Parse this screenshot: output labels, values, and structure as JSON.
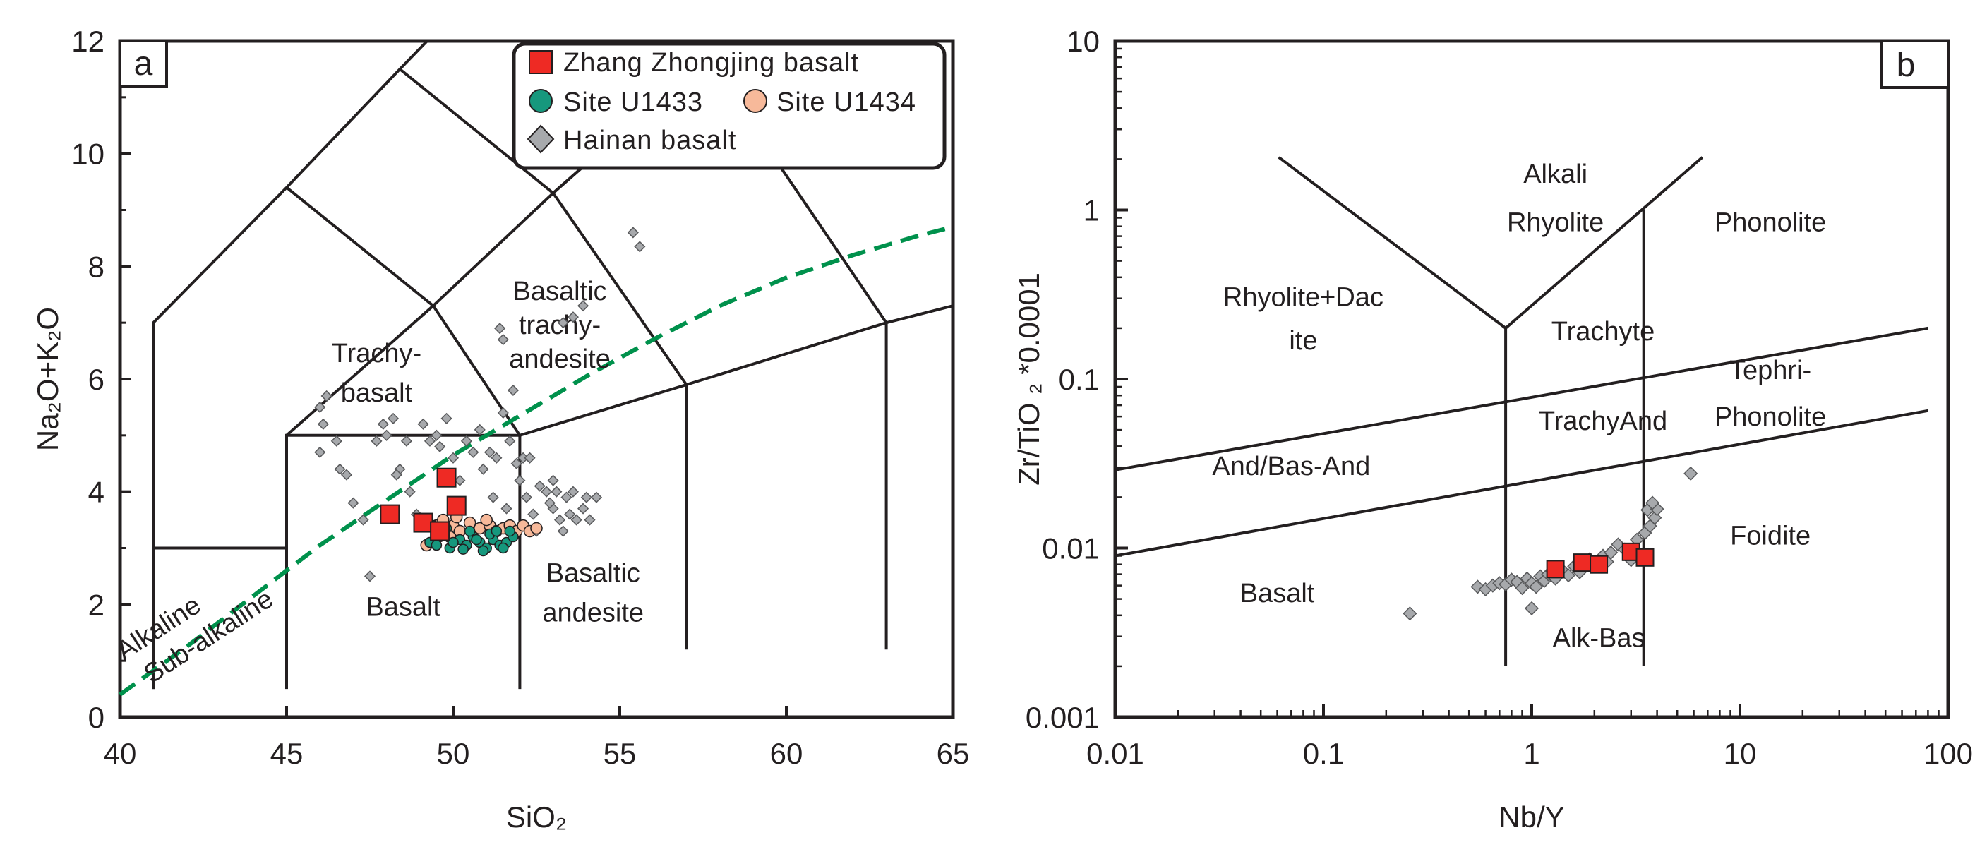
{
  "colors": {
    "ink": "#231f20",
    "zhang": "#ee2a24",
    "u1433": "#16987d",
    "u1434": "#f7b99a",
    "hainan": "#a7a9ac",
    "divider": "#00914c"
  },
  "chart_data": [
    {
      "type": "scatter",
      "panel": "a",
      "title": "",
      "xlabel": "SiO₂",
      "ylabel": "Na₂O+K₂O",
      "xlim": [
        40,
        65
      ],
      "ylim": [
        0,
        12
      ],
      "xticks": [
        "40",
        "45",
        "50",
        "55",
        "60",
        "65"
      ],
      "yticks": [
        "0",
        "2",
        "4",
        "6",
        "8",
        "10",
        "12"
      ],
      "legend": {
        "placement": "top-right",
        "entries": [
          "Zhang Zhongjing basalt",
          "Site U1433",
          "Site U1434",
          "Hainan basalt"
        ]
      },
      "fields": [
        {
          "label": "Basalt",
          "x": 48.5,
          "y": 1.8
        },
        {
          "label": "Basaltic",
          "x": 54.2,
          "y": 2.4
        },
        {
          "label": "andesite",
          "x": 54.2,
          "y": 1.7
        },
        {
          "label": "Trachy-",
          "x": 47.7,
          "y": 6.3
        },
        {
          "label": "basalt",
          "x": 47.7,
          "y": 5.6
        },
        {
          "label": "Basaltic",
          "x": 53.2,
          "y": 7.4
        },
        {
          "label": "trachy-",
          "x": 53.2,
          "y": 6.8
        },
        {
          "label": "andesite",
          "x": 53.2,
          "y": 6.2
        }
      ],
      "divider_labels": [
        "Alkaline",
        "Sub-alkaline"
      ],
      "series": [
        {
          "name": "Zhang Zhongjing basalt",
          "points": [
            [
              48.1,
              3.6
            ],
            [
              49.1,
              3.45
            ],
            [
              49.6,
              3.3
            ],
            [
              49.8,
              4.25
            ],
            [
              50.1,
              3.75
            ]
          ]
        },
        {
          "name": "Site U1433",
          "points": [
            [
              49.3,
              3.1
            ],
            [
              49.6,
              3.2
            ],
            [
              49.9,
              3.0
            ],
            [
              50.2,
              3.15
            ],
            [
              50.4,
              3.05
            ],
            [
              50.6,
              3.2
            ],
            [
              50.8,
              3.1
            ],
            [
              51.0,
              3.0
            ],
            [
              51.2,
              3.15
            ],
            [
              51.4,
              3.05
            ],
            [
              51.6,
              3.1
            ],
            [
              51.8,
              3.2
            ],
            [
              49.8,
              3.35
            ],
            [
              50.5,
              3.3
            ],
            [
              51.1,
              3.25
            ],
            [
              50.0,
              3.1
            ],
            [
              50.9,
              2.95
            ],
            [
              51.5,
              3.0
            ],
            [
              49.5,
              3.05
            ],
            [
              50.3,
              2.98
            ],
            [
              51.7,
              3.3
            ],
            [
              49.4,
              3.4
            ],
            [
              50.7,
              3.15
            ],
            [
              51.3,
              3.3
            ]
          ]
        },
        {
          "name": "Site U1434",
          "points": [
            [
              49.2,
              3.05
            ],
            [
              49.5,
              3.4
            ],
            [
              49.7,
              3.5
            ],
            [
              50.0,
              3.4
            ],
            [
              50.2,
              3.3
            ],
            [
              50.5,
              3.45
            ],
            [
              50.8,
              3.35
            ],
            [
              51.1,
              3.4
            ],
            [
              51.3,
              3.3
            ],
            [
              51.5,
              3.35
            ],
            [
              51.7,
              3.4
            ],
            [
              51.9,
              3.3
            ],
            [
              52.1,
              3.4
            ],
            [
              52.3,
              3.3
            ],
            [
              52.5,
              3.35
            ],
            [
              50.1,
              3.55
            ],
            [
              49.0,
              3.5
            ],
            [
              51.0,
              3.5
            ],
            [
              49.9,
              3.2
            ]
          ]
        },
        {
          "name": "Hainan basalt",
          "points": [
            [
              46.0,
              5.5
            ],
            [
              46.2,
              5.7
            ],
            [
              46.1,
              5.2
            ],
            [
              46.5,
              4.9
            ],
            [
              46.0,
              4.7
            ],
            [
              46.8,
              4.3
            ],
            [
              46.6,
              4.4
            ],
            [
              47.0,
              3.8
            ],
            [
              47.3,
              3.5
            ],
            [
              47.5,
              2.5
            ],
            [
              47.7,
              4.9
            ],
            [
              47.9,
              5.2
            ],
            [
              48.0,
              5.0
            ],
            [
              48.2,
              5.3
            ],
            [
              48.4,
              4.4
            ],
            [
              48.6,
              4.9
            ],
            [
              48.3,
              4.3
            ],
            [
              48.7,
              4.0
            ],
            [
              48.9,
              3.6
            ],
            [
              49.1,
              5.2
            ],
            [
              49.3,
              4.9
            ],
            [
              49.5,
              5.0
            ],
            [
              49.6,
              4.8
            ],
            [
              49.8,
              5.3
            ],
            [
              50.0,
              4.6
            ],
            [
              50.2,
              4.2
            ],
            [
              50.4,
              4.9
            ],
            [
              50.6,
              4.7
            ],
            [
              50.8,
              5.1
            ],
            [
              50.9,
              4.4
            ],
            [
              51.1,
              4.7
            ],
            [
              51.3,
              4.6
            ],
            [
              51.5,
              5.4
            ],
            [
              51.7,
              4.9
            ],
            [
              51.9,
              4.5
            ],
            [
              52.0,
              4.2
            ],
            [
              52.2,
              3.9
            ],
            [
              52.4,
              3.6
            ],
            [
              52.6,
              4.1
            ],
            [
              52.8,
              4.0
            ],
            [
              53.0,
              3.7
            ],
            [
              53.2,
              3.5
            ],
            [
              53.4,
              3.9
            ],
            [
              53.5,
              3.6
            ],
            [
              53.7,
              3.5
            ],
            [
              53.9,
              3.7
            ],
            [
              54.1,
              3.5
            ],
            [
              54.3,
              3.9
            ],
            [
              53.1,
              4.0
            ],
            [
              52.9,
              3.8
            ],
            [
              53.6,
              4.0
            ],
            [
              52.1,
              4.6
            ],
            [
              51.2,
              3.9
            ],
            [
              51.6,
              3.7
            ],
            [
              52.5,
              3.3
            ],
            [
              53.3,
              3.3
            ],
            [
              51.4,
              6.9
            ],
            [
              51.5,
              6.7
            ],
            [
              53.3,
              7.0
            ],
            [
              53.6,
              7.1
            ],
            [
              53.9,
              7.3
            ],
            [
              55.4,
              8.6
            ],
            [
              55.6,
              8.35
            ],
            [
              51.8,
              5.8
            ],
            [
              52.3,
              4.6
            ],
            [
              53.0,
              4.2
            ],
            [
              54.0,
              3.9
            ]
          ]
        }
      ]
    },
    {
      "type": "scatter",
      "panel": "b",
      "title": "",
      "xlabel": "Nb/Y",
      "ylabel": "Zr/TiO ₂ *0.0001",
      "xscale": "log",
      "yscale": "log",
      "xlim": [
        0.01,
        100
      ],
      "ylim": [
        0.001,
        10
      ],
      "xticks": [
        "0.01",
        "0.1",
        "1",
        "10",
        "100"
      ],
      "yticks": [
        "0.001",
        "0.01",
        "0.1",
        "1",
        "10"
      ],
      "fields": [
        {
          "label": "Alkali",
          "x": 1.3,
          "y": 1.45
        },
        {
          "label": "Rhyolite",
          "x": 1.3,
          "y": 0.75
        },
        {
          "label": "Phonolite",
          "x": 14,
          "y": 0.75
        },
        {
          "label": "Rhyolite+Dac",
          "x": 0.08,
          "y": 0.27
        },
        {
          "label": "ite",
          "x": 0.08,
          "y": 0.15
        },
        {
          "label": "Trachyte",
          "x": 2.2,
          "y": 0.17
        },
        {
          "label": "Tephri-",
          "x": 14,
          "y": 0.1
        },
        {
          "label": "Phonolite",
          "x": 14,
          "y": 0.053
        },
        {
          "label": "TrachyAnd",
          "x": 2.2,
          "y": 0.05
        },
        {
          "label": "And/Bas-And",
          "x": 0.07,
          "y": 0.027
        },
        {
          "label": "Foidite",
          "x": 14,
          "y": 0.0105
        },
        {
          "label": "Basalt",
          "x": 0.06,
          "y": 0.0048
        },
        {
          "label": "Alk-Bas",
          "x": 2.1,
          "y": 0.0026
        }
      ],
      "series": [
        {
          "name": "Zhang Zhongjing basalt",
          "points": [
            [
              1.3,
              0.0075
            ],
            [
              1.75,
              0.0082
            ],
            [
              2.1,
              0.008
            ],
            [
              3.0,
              0.0095
            ],
            [
              3.5,
              0.0088
            ]
          ]
        },
        {
          "name": "Hainan basalt",
          "points": [
            [
              0.26,
              0.0041
            ],
            [
              0.55,
              0.0059
            ],
            [
              0.6,
              0.0057
            ],
            [
              0.65,
              0.006
            ],
            [
              0.7,
              0.0062
            ],
            [
              0.75,
              0.0061
            ],
            [
              0.8,
              0.0065
            ],
            [
              0.85,
              0.0063
            ],
            [
              0.9,
              0.0058
            ],
            [
              0.95,
              0.0066
            ],
            [
              1.0,
              0.0062
            ],
            [
              1.0,
              0.0044
            ],
            [
              1.05,
              0.0059
            ],
            [
              1.1,
              0.0068
            ],
            [
              1.15,
              0.0064
            ],
            [
              1.2,
              0.007
            ],
            [
              1.3,
              0.0066
            ],
            [
              1.4,
              0.0074
            ],
            [
              1.5,
              0.0069
            ],
            [
              1.6,
              0.0078
            ],
            [
              1.7,
              0.0072
            ],
            [
              1.8,
              0.0081
            ],
            [
              1.9,
              0.0086
            ],
            [
              2.0,
              0.0079
            ],
            [
              2.2,
              0.009
            ],
            [
              2.4,
              0.0094
            ],
            [
              2.6,
              0.0105
            ],
            [
              2.8,
              0.0098
            ],
            [
              3.0,
              0.0085
            ],
            [
              3.2,
              0.0112
            ],
            [
              3.5,
              0.0123
            ],
            [
              3.7,
              0.0135
            ],
            [
              3.9,
              0.0151
            ],
            [
              3.6,
              0.0168
            ],
            [
              4.0,
              0.017
            ],
            [
              3.8,
              0.0185
            ],
            [
              5.8,
              0.0276
            ],
            [
              1.25,
              0.0073
            ],
            [
              2.3,
              0.0083
            ]
          ]
        }
      ]
    }
  ]
}
